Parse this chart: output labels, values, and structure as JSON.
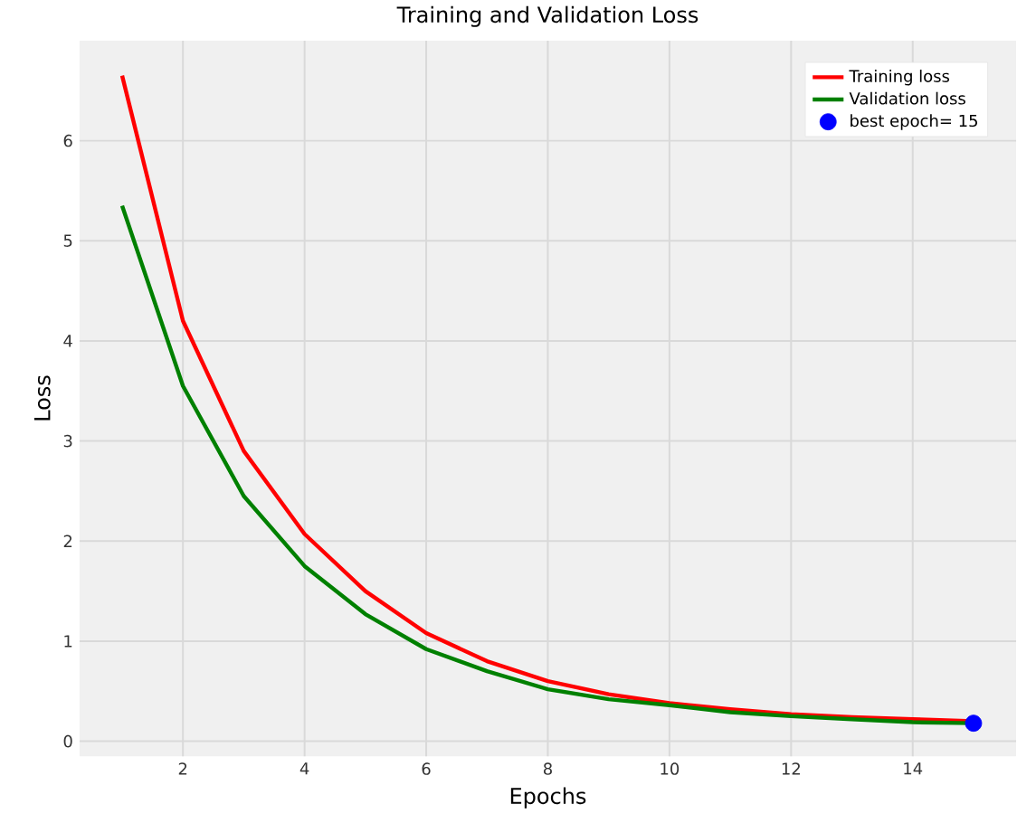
{
  "chart_data": {
    "type": "line",
    "title": "Training and Validation Loss",
    "xlabel": "Epochs",
    "ylabel": "Loss",
    "x": [
      1,
      2,
      3,
      4,
      5,
      6,
      7,
      8,
      9,
      10,
      11,
      12,
      13,
      14,
      15
    ],
    "series": [
      {
        "name": "Training loss",
        "color": "#ff0000",
        "values": [
          6.65,
          4.2,
          2.9,
          2.07,
          1.5,
          1.08,
          0.8,
          0.6,
          0.47,
          0.38,
          0.32,
          0.27,
          0.24,
          0.22,
          0.2
        ]
      },
      {
        "name": "Validation loss",
        "color": "#008000",
        "values": [
          5.35,
          3.55,
          2.45,
          1.75,
          1.27,
          0.92,
          0.7,
          0.52,
          0.42,
          0.36,
          0.29,
          0.25,
          0.22,
          0.19,
          0.18
        ]
      },
      {
        "name": "best epoch= 15",
        "type": "scatter",
        "color": "#0000ff",
        "x": [
          15
        ],
        "values": [
          0.18
        ],
        "marker": "circle"
      }
    ],
    "xlim": [
      0.3,
      15.7
    ],
    "ylim": [
      -0.15,
      7.0
    ],
    "xticks": [
      2,
      4,
      6,
      8,
      10,
      12,
      14
    ],
    "yticks": [
      0,
      1,
      2,
      3,
      4,
      5,
      6
    ],
    "grid": true,
    "legend": "top right",
    "line_style": "solid"
  }
}
